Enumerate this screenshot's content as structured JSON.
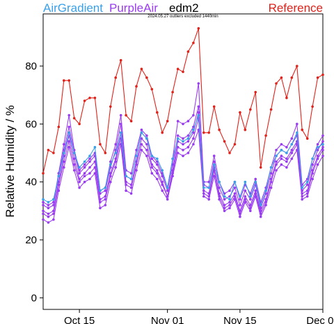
{
  "chart_data": {
    "type": "line",
    "ylabel": "Relative Humidity / %",
    "annotation": "2024.05.27 outliers excluded 1440min",
    "ylim": [
      -4,
      98
    ],
    "xlim": [
      "2024-10-08",
      "2024-12-01"
    ],
    "y_ticks": [
      0,
      20,
      40,
      60,
      80
    ],
    "x_ticks": [
      {
        "date": "2024-10-15",
        "label": "Oct 15"
      },
      {
        "date": "2024-11-01",
        "label": "Nov 01"
      },
      {
        "date": "2024-11-15",
        "label": "Nov 15"
      },
      {
        "date": "2024-12-01",
        "label": "Dec 01"
      }
    ],
    "legend_placement": "top",
    "legend": [
      {
        "label": "AirGradient",
        "color": "#3aa0e8"
      },
      {
        "label": "PurpleAir",
        "color": "#9a3cf0"
      },
      {
        "label": "edm2",
        "color": "#000000"
      },
      {
        "label": "Reference",
        "color": "#e0221a"
      }
    ],
    "x": [
      "2024-10-08",
      "2024-10-09",
      "2024-10-10",
      "2024-10-11",
      "2024-10-12",
      "2024-10-13",
      "2024-10-14",
      "2024-10-15",
      "2024-10-16",
      "2024-10-17",
      "2024-10-18",
      "2024-10-19",
      "2024-10-20",
      "2024-10-21",
      "2024-10-22",
      "2024-10-23",
      "2024-10-24",
      "2024-10-25",
      "2024-10-26",
      "2024-10-27",
      "2024-10-28",
      "2024-10-29",
      "2024-10-30",
      "2024-10-31",
      "2024-11-01",
      "2024-11-02",
      "2024-11-03",
      "2024-11-04",
      "2024-11-05",
      "2024-11-06",
      "2024-11-07",
      "2024-11-08",
      "2024-11-09",
      "2024-11-10",
      "2024-11-11",
      "2024-11-12",
      "2024-11-13",
      "2024-11-14",
      "2024-11-15",
      "2024-11-16",
      "2024-11-17",
      "2024-11-18",
      "2024-11-19",
      "2024-11-20",
      "2024-11-21",
      "2024-11-22",
      "2024-11-23",
      "2024-11-24",
      "2024-11-25",
      "2024-11-26",
      "2024-11-27",
      "2024-11-28",
      "2024-11-29",
      "2024-11-30",
      "2024-12-01"
    ],
    "series": [
      {
        "name": "Reference",
        "color": "#e0221a",
        "values": [
          43,
          51,
          50,
          59,
          75,
          75,
          62,
          60,
          68,
          69,
          69,
          53,
          50,
          66,
          76,
          82,
          63,
          61,
          73,
          79,
          76,
          72,
          64,
          57,
          61,
          71,
          79,
          78,
          85,
          88,
          93,
          57,
          57,
          66,
          58,
          54,
          50,
          53,
          64,
          58,
          65,
          71,
          45,
          56,
          65,
          74,
          76,
          69,
          76,
          80,
          58,
          55,
          66,
          76,
          77
        ]
      },
      {
        "name": "AirGradient",
        "color": "#3aa0e8",
        "values": [
          34,
          33,
          34,
          42,
          50,
          57,
          50,
          45,
          47,
          49,
          52,
          37,
          38,
          46,
          50,
          57,
          42,
          41,
          49,
          57,
          55,
          49,
          48,
          44,
          38,
          48,
          55,
          54,
          55,
          58,
          63,
          38,
          38,
          46,
          40,
          35,
          34,
          40,
          35,
          40,
          35,
          40,
          32,
          37,
          45,
          49,
          51,
          50,
          53,
          57,
          38,
          40,
          48,
          52,
          53
        ]
      },
      {
        "name": "PurpleAir 1",
        "color": "#9a3cf0",
        "values": [
          33,
          32,
          33,
          43,
          53,
          63,
          51,
          44,
          46,
          48,
          50,
          37,
          38,
          47,
          53,
          63,
          44,
          43,
          51,
          58,
          56,
          49,
          47,
          43,
          38,
          48,
          61,
          60,
          61,
          63,
          74,
          40,
          40,
          49,
          40,
          36,
          37,
          40,
          34,
          39,
          36,
          41,
          33,
          38,
          45,
          51,
          53,
          52,
          55,
          60,
          39,
          41,
          48,
          53,
          56
        ]
      },
      {
        "name": "PurpleAir 2",
        "color": "#9a3cf0",
        "values": [
          32,
          31,
          32,
          42,
          51,
          59,
          50,
          43,
          45,
          47,
          49,
          36,
          37,
          45,
          51,
          60,
          42,
          41,
          49,
          57,
          55,
          48,
          46,
          42,
          37,
          46,
          56,
          55,
          56,
          59,
          66,
          39,
          38,
          47,
          38,
          34,
          35,
          38,
          32,
          37,
          34,
          39,
          31,
          36,
          43,
          49,
          51,
          50,
          53,
          56,
          37,
          39,
          46,
          51,
          54
        ]
      },
      {
        "name": "PurpleAir 3",
        "color": "#9a3cf0",
        "values": [
          30,
          29,
          30,
          40,
          49,
          56,
          48,
          41,
          43,
          45,
          47,
          34,
          35,
          43,
          48,
          57,
          40,
          39,
          47,
          55,
          53,
          46,
          44,
          40,
          35,
          44,
          54,
          53,
          54,
          57,
          64,
          37,
          36,
          45,
          36,
          32,
          33,
          36,
          30,
          35,
          32,
          37,
          30,
          34,
          41,
          47,
          49,
          48,
          51,
          54,
          36,
          37,
          44,
          49,
          52
        ]
      },
      {
        "name": "PurpleAir 4",
        "color": "#9a3cf0",
        "values": [
          29,
          28,
          29,
          39,
          47,
          54,
          46,
          40,
          42,
          43,
          45,
          33,
          34,
          42,
          47,
          55,
          39,
          38,
          46,
          53,
          51,
          45,
          43,
          39,
          35,
          43,
          52,
          51,
          52,
          55,
          62,
          36,
          35,
          44,
          35,
          31,
          32,
          35,
          29,
          34,
          31,
          36,
          29,
          33,
          40,
          46,
          48,
          47,
          50,
          53,
          35,
          36,
          43,
          48,
          51
        ]
      },
      {
        "name": "PurpleAir 5",
        "color": "#9a3cf0",
        "values": [
          27,
          26,
          27,
          37,
          45,
          52,
          44,
          38,
          40,
          41,
          43,
          31,
          32,
          40,
          45,
          53,
          37,
          36,
          44,
          51,
          49,
          43,
          41,
          37,
          34,
          42,
          50,
          49,
          50,
          53,
          58,
          35,
          34,
          42,
          34,
          30,
          31,
          34,
          28,
          33,
          30,
          35,
          28,
          32,
          38,
          44,
          46,
          45,
          48,
          51,
          34,
          35,
          41,
          46,
          49
        ]
      }
    ]
  }
}
